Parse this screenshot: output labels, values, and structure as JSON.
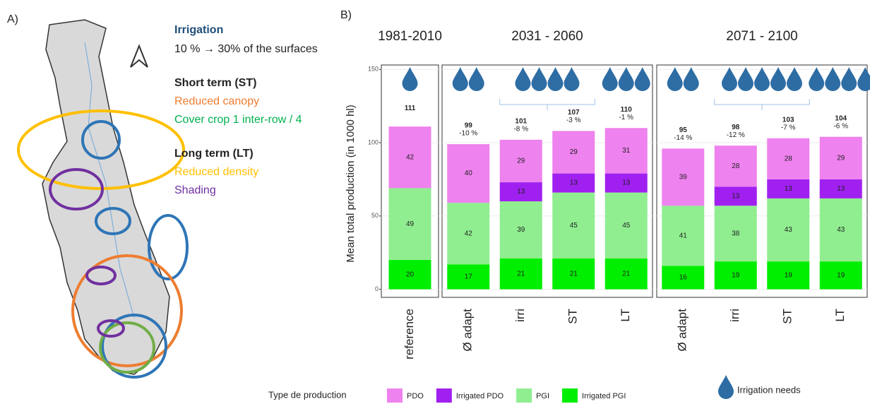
{
  "map": {
    "panel_label": "A)",
    "legend": {
      "irrigation": "Irrigation",
      "irrigation_detail": "10 % → 30% of the surfaces",
      "short_term": "Short term (ST)",
      "reduced_canopy": "Reduced canopy",
      "cover_crop": "Cover crop 1 inter-row / 4",
      "long_term": "Long term (LT)",
      "reduced_density": "Reduced density",
      "shading": "Shading"
    }
  },
  "chart_data": {
    "type": "stacked_bar",
    "panel_label": "B)",
    "ylabel": "Mean total production (in 1000 hl)",
    "facets": [
      {
        "label": "1981-2010",
        "categories": [
          "reference"
        ]
      },
      {
        "label": "2031 - 2060",
        "categories": [
          "Ø adapt",
          "irri",
          "ST",
          "LT"
        ]
      },
      {
        "label": "2071 - 2100",
        "categories": [
          "Ø adapt",
          "irri",
          "ST",
          "LT"
        ]
      }
    ],
    "series": [
      {
        "name": "PDO",
        "color": "#ee82ee",
        "values": [
          42,
          40,
          29,
          29,
          31,
          39,
          28,
          28,
          29
        ]
      },
      {
        "name": "Irrigated PDO",
        "color": "#a020f0",
        "values": [
          null,
          null,
          13,
          13,
          13,
          null,
          13,
          13,
          13
        ]
      },
      {
        "name": "PGI",
        "color": "#90ee90",
        "values": [
          49,
          42,
          39,
          45,
          45,
          41,
          38,
          43,
          43
        ]
      },
      {
        "name": "Irrigated PGI",
        "color": "#00ee00",
        "values": [
          20,
          17,
          21,
          21,
          21,
          16,
          19,
          19,
          19
        ]
      }
    ],
    "totals": [
      111,
      99,
      101,
      107,
      110,
      95,
      98,
      103,
      104
    ],
    "change_labels": [
      null,
      "-10 %",
      "-8 %",
      "-3 %",
      "-1 %",
      "-14 %",
      "-12 %",
      "-7 %",
      "-6 %"
    ],
    "irrigation_drops": [
      1,
      2,
      4,
      4,
      3,
      2,
      5,
      5,
      4
    ],
    "irrigation_label": "Irrigation needs",
    "drop_color": "#2e6da4",
    "legend_title": "Type de production",
    "ylim": [
      -5.5,
      153
    ],
    "yticks": [
      0,
      50,
      100,
      150
    ],
    "grid": true
  }
}
